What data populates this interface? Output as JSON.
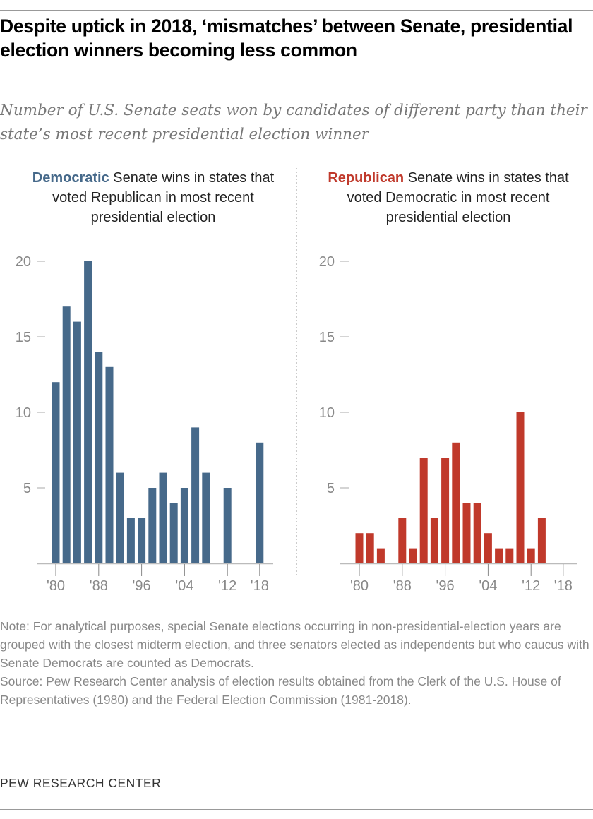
{
  "title": "Despite uptick in 2018, ‘mismatches’ between Senate, presidential election winners becoming less common",
  "subtitle": "Number of U.S. Senate seats won by candidates of different party than their state’s most recent presidential election winner",
  "chart_data": [
    {
      "type": "bar",
      "panel_title_bold": "Democratic",
      "panel_title_rest": " Senate wins in states that voted Republican in most recent presidential election",
      "color": "#46698a",
      "x": [
        1980,
        1982,
        1984,
        1986,
        1988,
        1990,
        1992,
        1994,
        1996,
        1998,
        2000,
        2002,
        2004,
        2006,
        2008,
        2010,
        2012,
        2014,
        2016,
        2018
      ],
      "values": [
        12,
        17,
        16,
        20,
        14,
        13,
        6,
        3,
        3,
        5,
        6,
        4,
        5,
        9,
        6,
        0,
        5,
        0,
        0,
        8
      ],
      "ylim": [
        0,
        20
      ],
      "yticks": [
        "5",
        "10",
        "15",
        "20"
      ],
      "xtick_years": [
        1980,
        1988,
        1996,
        2004,
        2012,
        2018
      ],
      "xtick_labels": [
        "'80",
        "'88",
        "'96",
        "'04",
        "'12",
        "'18"
      ],
      "grid": false
    },
    {
      "type": "bar",
      "panel_title_bold": "Republican",
      "panel_title_rest": " Senate wins in states that voted Democratic in most recent presidential election",
      "color": "#c0392b",
      "x": [
        1980,
        1982,
        1984,
        1986,
        1988,
        1990,
        1992,
        1994,
        1996,
        1998,
        2000,
        2002,
        2004,
        2006,
        2008,
        2010,
        2012,
        2014,
        2016,
        2018
      ],
      "values": [
        2,
        2,
        1,
        0,
        3,
        1,
        7,
        3,
        7,
        8,
        4,
        4,
        2,
        1,
        1,
        10,
        1,
        3,
        0,
        0
      ],
      "ylim": [
        0,
        20
      ],
      "yticks": [
        "5",
        "10",
        "15",
        "20"
      ],
      "xtick_years": [
        1980,
        1988,
        1996,
        2004,
        2012,
        2018
      ],
      "xtick_labels": [
        "'80",
        "'88",
        "'96",
        "'04",
        "'12",
        "'18"
      ],
      "grid": false
    }
  ],
  "note": "Note: For analytical purposes, special Senate elections occurring in non-presidential-election years are grouped with the closest midterm election, and three senators elected as independents but who caucus with Senate Democrats are counted as Democrats.",
  "source": "Source: Pew Research Center analysis of election results obtained from the Clerk of the U.S. House of Representatives (1980) and the Federal Election Commission (1981-2018).",
  "brand": "PEW RESEARCH CENTER"
}
